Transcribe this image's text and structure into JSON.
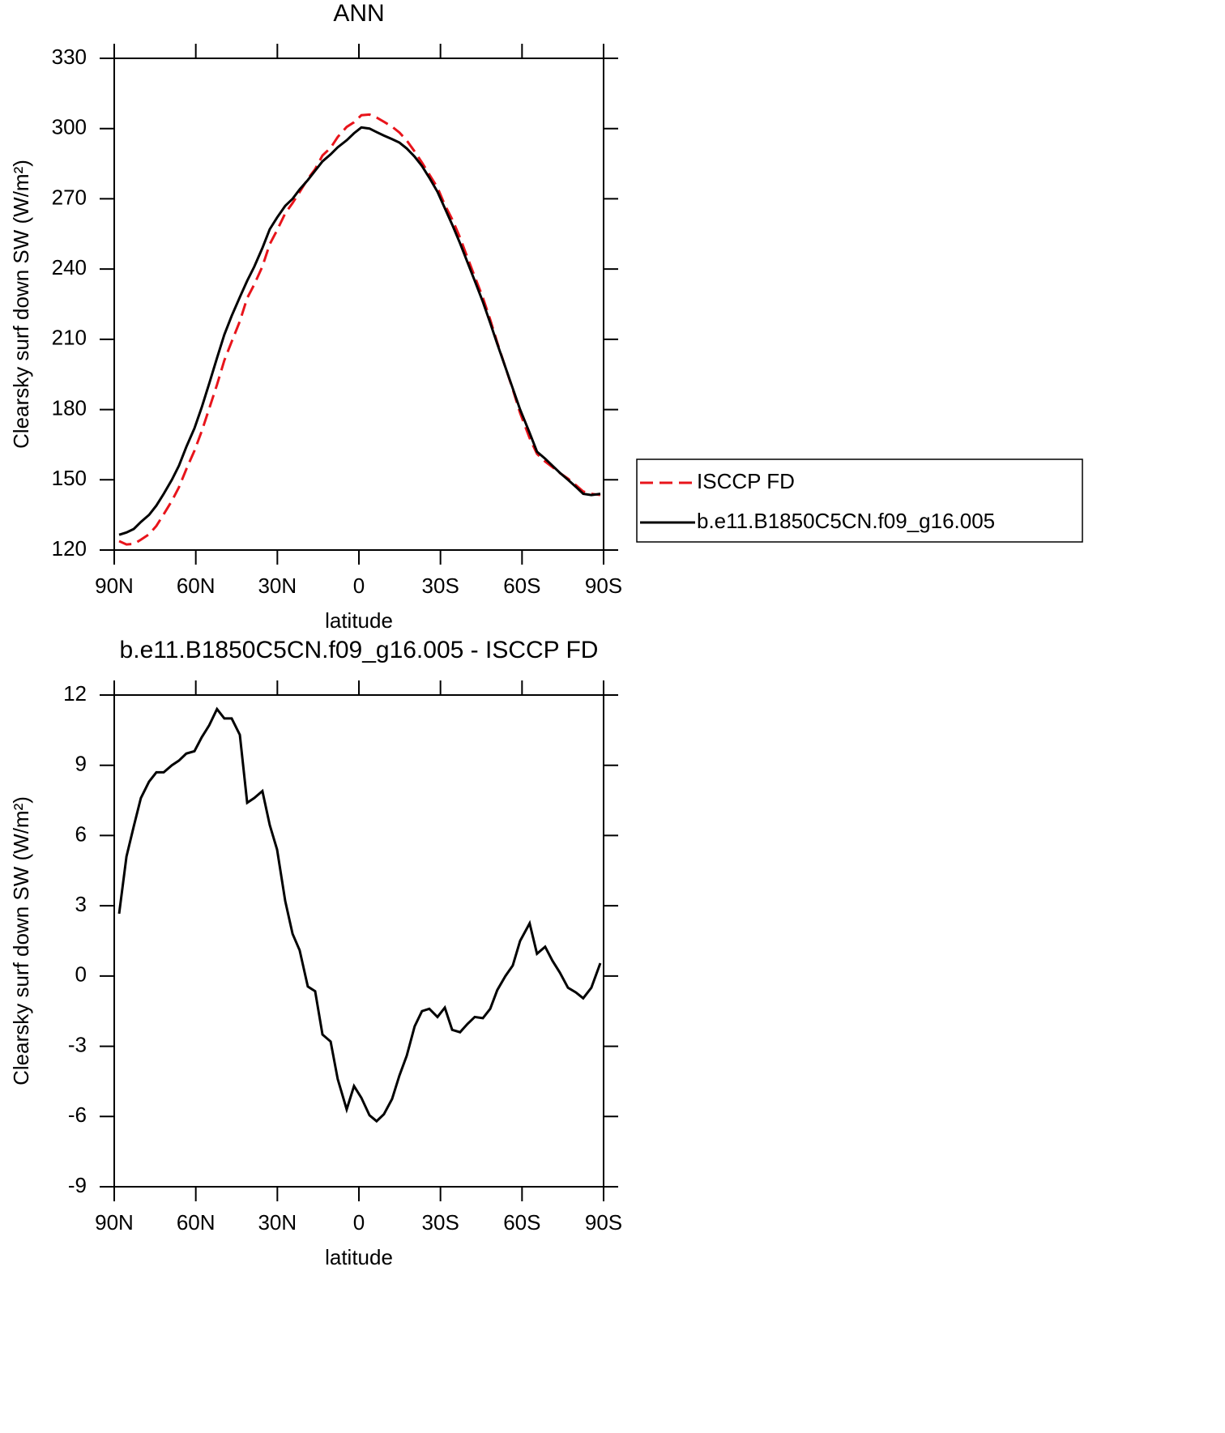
{
  "chart_data": [
    {
      "type": "line",
      "title": "ANN",
      "xlabel": "latitude",
      "ylabel": "Clearsky surf down SW (W/m²)",
      "x": [
        88.2,
        85.5,
        82.8,
        80.2,
        77.2,
        74.5,
        71.8,
        68.8,
        66.2,
        63.5,
        60.5,
        57.8,
        55.1,
        52.2,
        49.5,
        46.8,
        43.8,
        41.1,
        38.5,
        35.5,
        32.8,
        30.1,
        27.1,
        24.4,
        21.8,
        18.8,
        16.1,
        13.4,
        10.4,
        7.8,
        4.5,
        1.8,
        -0.9,
        -3.9,
        -6.5,
        -9.2,
        -12.2,
        -14.9,
        -17.6,
        -20.5,
        -23.2,
        -25.9,
        -28.9,
        -31.6,
        -34.3,
        -37.2,
        -39.9,
        -42.6,
        -45.6,
        -48.3,
        -50.9,
        -53.9,
        -56.6,
        -59.3,
        -62.8,
        -65.5,
        -68.5,
        -71.2,
        -73.9,
        -76.9,
        -79.8,
        -82.5,
        -85.5,
        -88.8
      ],
      "series": [
        {
          "name": "ISCCP FD",
          "color": "#e8141b",
          "dash": "dashed",
          "values": [
            123.8,
            122.4,
            122.6,
            124.4,
            126.7,
            130.3,
            135.3,
            141,
            146.8,
            154.5,
            162.4,
            170.8,
            180.3,
            190.6,
            201,
            209,
            217.7,
            227.6,
            233.4,
            241.1,
            250.6,
            256.6,
            263.8,
            268.2,
            272.9,
            278.5,
            282.7,
            288.5,
            291.8,
            296.4,
            300.7,
            302.7,
            305.7,
            306,
            304.7,
            302.9,
            300.8,
            298.3,
            294.9,
            290.2,
            285.5,
            280.4,
            274.8,
            267.4,
            261.3,
            253.4,
            245,
            236.8,
            227.8,
            218.4,
            208.6,
            198,
            188.6,
            178.5,
            167.8,
            161.1,
            157.8,
            155.4,
            152.9,
            150.5,
            147.7,
            145,
            144,
            143.5
          ]
        },
        {
          "name": "b.e11.B1850C5CN.f09_g16.005",
          "color": "#000000",
          "dash": "solid",
          "values": [
            126.5,
            127.5,
            129,
            132,
            135,
            139,
            144,
            150,
            156,
            164,
            172,
            181,
            191,
            202,
            212,
            220,
            228,
            235,
            241,
            249,
            257,
            262,
            267,
            270,
            274,
            278,
            282,
            286,
            289,
            292,
            295,
            298,
            300.5,
            300,
            298.5,
            297,
            295.5,
            294,
            291.5,
            288,
            284,
            279,
            273,
            266,
            259,
            251,
            243,
            235,
            226,
            217,
            208,
            198,
            189,
            180,
            170,
            162,
            159,
            156,
            153,
            150,
            147,
            144,
            143.5,
            144
          ]
        }
      ],
      "xlim": [
        90,
        -90
      ],
      "xticks": [
        {
          "value": 90,
          "label": "90N"
        },
        {
          "value": 60,
          "label": "60N"
        },
        {
          "value": 30,
          "label": "30N"
        },
        0,
        {
          "value": -30,
          "label": "30S"
        },
        {
          "value": -60,
          "label": "60S"
        },
        {
          "value": -90,
          "label": "90S"
        }
      ],
      "ylim": [
        120,
        330
      ],
      "yticks": [
        120,
        150,
        180,
        210,
        240,
        270,
        300,
        330
      ],
      "legend": "outside-right"
    },
    {
      "type": "line",
      "title": "b.e11.B1850C5CN.f09_g16.005 - ISCCP FD",
      "xlabel": "latitude",
      "ylabel": "Clearsky surf down SW (W/m²)",
      "x": [
        88.2,
        85.5,
        82.8,
        80.2,
        77.2,
        74.5,
        71.8,
        68.8,
        66.2,
        63.5,
        60.5,
        57.8,
        55.1,
        52.2,
        49.5,
        46.8,
        43.8,
        41.1,
        38.5,
        35.5,
        32.8,
        30.1,
        27.1,
        24.4,
        21.8,
        18.8,
        16.1,
        13.4,
        10.4,
        7.8,
        4.5,
        1.8,
        -0.9,
        -3.9,
        -6.5,
        -9.2,
        -12.2,
        -14.9,
        -17.6,
        -20.5,
        -23.2,
        -25.9,
        -28.9,
        -31.6,
        -34.3,
        -37.2,
        -39.9,
        -42.6,
        -45.6,
        -48.3,
        -50.9,
        -53.9,
        -56.6,
        -59.3,
        -62.8,
        -65.5,
        -68.5,
        -71.2,
        -73.9,
        -76.9,
        -79.8,
        -82.5,
        -85.5,
        -88.8
      ],
      "values": [
        2.66,
        5.1,
        6.4,
        7.6,
        8.3,
        8.7,
        8.7,
        9,
        9.2,
        9.5,
        9.6,
        10.2,
        10.7,
        11.4,
        11,
        11,
        10.3,
        7.4,
        7.6,
        7.9,
        6.45,
        5.4,
        3.2,
        1.8,
        1.1,
        -0.45,
        -0.65,
        -2.5,
        -2.8,
        -4.4,
        -5.7,
        -4.7,
        -5.2,
        -5.95,
        -6.2,
        -5.9,
        -5.25,
        -4.25,
        -3.4,
        -2.15,
        -1.5,
        -1.4,
        -1.75,
        -1.35,
        -2.3,
        -2.4,
        -2.05,
        -1.75,
        -1.8,
        -1.4,
        -0.6,
        0,
        0.45,
        1.5,
        2.25,
        0.95,
        1.25,
        0.65,
        0.15,
        -0.5,
        -0.7,
        -0.95,
        -0.5,
        0.55
      ],
      "color": "#000000",
      "xlim": [
        90,
        -90
      ],
      "xticks": [
        {
          "value": 90,
          "label": "90N"
        },
        {
          "value": 60,
          "label": "60N"
        },
        {
          "value": 30,
          "label": "30N"
        },
        0,
        {
          "value": -30,
          "label": "30S"
        },
        {
          "value": -60,
          "label": "60S"
        },
        {
          "value": -90,
          "label": "90S"
        }
      ],
      "ylim": [
        -9,
        12
      ],
      "yticks": [
        -9,
        -6,
        -3,
        0,
        3,
        6,
        9,
        12
      ]
    }
  ]
}
